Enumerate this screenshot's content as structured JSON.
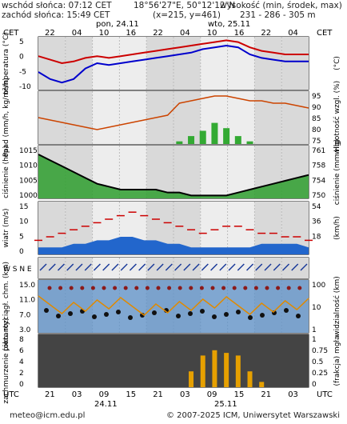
{
  "header": {
    "sunrise": "wschód słońca: 07:12 CET",
    "sunset": "zachód słońca: 15:49 CET",
    "coords": "18°56'27\"E, 50°12'12\"N",
    "grid": "(x=215, y=461)",
    "elevation_title": "wysokość (min, środek, max)",
    "elevation_values": "231 - 286 - 305 m"
  },
  "time_axis": {
    "top_tz": "CET",
    "bottom_tz": "UTC",
    "top_hours": [
      "22",
      "04",
      "10",
      "16",
      "22",
      "04",
      "10",
      "16",
      "22",
      "04"
    ],
    "bottom_hours": [
      "21",
      "03",
      "09",
      "15",
      "21",
      "03",
      "09",
      "15",
      "21",
      "03"
    ],
    "top_dates": [
      "pon, 24.11",
      "wto, 25.11"
    ],
    "bottom_dates": [
      "24.11",
      "25.11"
    ]
  },
  "chart_data": [
    {
      "type": "line",
      "panel": "temperature",
      "ylabel_left": "temperatura (°C)",
      "ylabel_right": "(°C)",
      "ylim": [
        -10,
        5
      ],
      "ticks": [
        "5",
        "0",
        "-5",
        "-10"
      ],
      "series": [
        {
          "color": "#cc0000",
          "values": [
            -0.5,
            -1.5,
            -2.5,
            -2,
            -1,
            -0.5,
            -1,
            -0.5,
            0,
            0.5,
            1,
            1.5,
            2,
            2.5,
            3,
            3.5,
            4,
            3.5,
            2,
            1,
            0.5,
            0,
            0,
            0
          ]
        },
        {
          "color": "#0000cc",
          "values": [
            -5,
            -7,
            -8,
            -7,
            -4,
            -2.5,
            -3,
            -2.5,
            -2,
            -1.5,
            -1,
            -0.5,
            0,
            0.5,
            1.5,
            2,
            2.5,
            2,
            0,
            -1,
            -1.5,
            -2,
            -2,
            -2
          ]
        }
      ]
    },
    {
      "type": "bar",
      "panel": "precipitation",
      "ylabel_left": "opad (mm/h, kg/m²/h)",
      "ylabel_right": "wilgotność wzgl. (%)",
      "ticks_right": [
        "95",
        "90",
        "85",
        "80",
        "75"
      ],
      "humidity": [
        86,
        85,
        84,
        83,
        82,
        81,
        82,
        83,
        84,
        85,
        86,
        87,
        92,
        93,
        94,
        95,
        95,
        94,
        93,
        93,
        92,
        92,
        91,
        90
      ],
      "precip": [
        0,
        0,
        0,
        0,
        0,
        0,
        0,
        0,
        0,
        0,
        0,
        0,
        0.1,
        0.3,
        0.5,
        0.8,
        0.6,
        0.3,
        0.1,
        0,
        0,
        0,
        0,
        0
      ]
    },
    {
      "type": "area",
      "panel": "pressure",
      "ylabel_left": "ciśnienie (hPa)",
      "ylabel_right": "ciśnienie (mm Hg)",
      "ticks_left": [
        "1015",
        "1010",
        "1005",
        "1000"
      ],
      "ticks_right": [
        "761",
        "758",
        "754",
        "750"
      ],
      "ylim": [
        998,
        1016
      ],
      "values": [
        1013,
        1011,
        1009,
        1007,
        1005,
        1003,
        1002,
        1001,
        1001,
        1001,
        1001,
        1000,
        1000,
        999,
        999,
        999,
        999,
        1000,
        1001,
        1002,
        1003,
        1004,
        1005,
        1006
      ]
    },
    {
      "type": "line",
      "panel": "wind",
      "ylabel_left": "wiatr (m/s)",
      "ylabel_right": "(km/h)",
      "ticks_left": [
        "15",
        "10",
        "5",
        "0"
      ],
      "ticks_right": [
        "54",
        "36",
        "18",
        ""
      ],
      "ylim": [
        0,
        15
      ],
      "gust": [
        4,
        5,
        6,
        7,
        8,
        9,
        10,
        11,
        12,
        11,
        10,
        9,
        8,
        7,
        6,
        7,
        8,
        8,
        7,
        6,
        6,
        5,
        5,
        4
      ],
      "mean": [
        2,
        2,
        2,
        3,
        3,
        4,
        4,
        5,
        5,
        4,
        4,
        3,
        3,
        2,
        2,
        2,
        2,
        2,
        2,
        3,
        3,
        3,
        3,
        2
      ]
    },
    {
      "type": "scatter",
      "panel": "clouds",
      "ylabel_left": "pion. rozciągł. chm. (km)",
      "ylabel_right": "widzialność (km)",
      "ticks_left": [
        "15.0",
        "11.0",
        "7.0",
        "3.0"
      ],
      "ticks_right": [
        "100",
        "10",
        "1"
      ]
    },
    {
      "type": "bar",
      "panel": "cloud_cover",
      "ylabel_left": "zachmurzenie (oktanty)",
      "ylabel_right": "(frakcja) mgła",
      "ticks_left": [
        "8",
        "6",
        "4",
        "2",
        "0"
      ],
      "ticks_right": [
        "1",
        "0.75",
        "0.5",
        "0.25",
        "0"
      ],
      "fog": [
        0,
        0,
        0,
        0,
        0,
        0,
        0,
        0,
        0,
        0,
        0,
        0,
        0,
        0.3,
        0.6,
        0.7,
        0.65,
        0.6,
        0.3,
        0.1,
        0,
        0,
        0,
        0
      ]
    }
  ],
  "footer": {
    "email": "meteo@icm.edu.pl",
    "copyright": "© 2007-2025 ICM, Uniwersytet Warszawski"
  }
}
